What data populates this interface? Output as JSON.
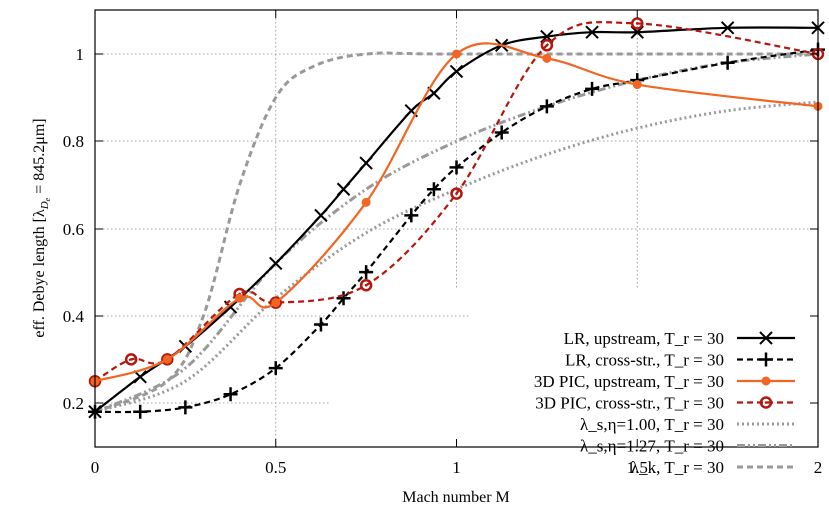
{
  "chart_data": {
    "type": "line",
    "title": "",
    "xlabel": "Mach number M",
    "ylabel": "eff. Debye length  [λ_De = 845.2μm]",
    "xlim": [
      0,
      2
    ],
    "ylim": [
      0.1,
      1.1
    ],
    "xticks": [
      "0",
      "0.5",
      "1",
      "1.5",
      "2"
    ],
    "yticks": [
      "0.2",
      "0.4",
      "0.6",
      "0.8",
      "1"
    ],
    "grid": true,
    "legend_position": "lower right",
    "series": [
      {
        "name": "LR, upstream, T_r = 30",
        "color": "#000000",
        "style": "solid",
        "marker": "x",
        "x": [
          0,
          0.125,
          0.25,
          0.375,
          0.5,
          0.625,
          0.6875,
          0.75,
          0.875,
          0.9375,
          1.0,
          1.125,
          1.25,
          1.375,
          1.5,
          1.75,
          2.0
        ],
        "y": [
          0.18,
          0.26,
          0.33,
          0.42,
          0.52,
          0.63,
          0.69,
          0.75,
          0.87,
          0.91,
          0.96,
          1.02,
          1.04,
          1.05,
          1.05,
          1.06,
          1.06
        ]
      },
      {
        "name": "LR, cross-str., T_r = 30",
        "color": "#000000",
        "style": "dashed",
        "marker": "+",
        "x": [
          0,
          0.125,
          0.25,
          0.375,
          0.5,
          0.625,
          0.6875,
          0.75,
          0.875,
          0.9375,
          1.0,
          1.125,
          1.25,
          1.375,
          1.5,
          1.75,
          2.0
        ],
        "y": [
          0.18,
          0.18,
          0.19,
          0.22,
          0.28,
          0.38,
          0.44,
          0.5,
          0.63,
          0.69,
          0.74,
          0.82,
          0.88,
          0.92,
          0.94,
          0.98,
          1.01
        ]
      },
      {
        "name": "3D PIC, upstream, T_r = 30",
        "color": "#f26522",
        "style": "solid",
        "marker": "dot",
        "x": [
          0,
          0.2,
          0.4,
          0.5,
          0.75,
          1.0,
          1.25,
          1.5,
          2.0
        ],
        "y": [
          0.25,
          0.3,
          0.44,
          0.43,
          0.66,
          1.0,
          0.99,
          0.93,
          0.88
        ]
      },
      {
        "name": "3D PIC, cross-str., T_r = 30",
        "color": "#b3170d",
        "style": "dashed",
        "marker": "circled-dot",
        "x": [
          0,
          0.1,
          0.2,
          0.4,
          0.5,
          0.75,
          1.0,
          1.25,
          1.5,
          2.0
        ],
        "y": [
          0.25,
          0.3,
          0.3,
          0.45,
          0.43,
          0.47,
          0.68,
          1.02,
          1.07,
          1.0
        ]
      },
      {
        "name": "λ_s,η=1.00, T_r = 30",
        "color": "#999999",
        "style": "dotted",
        "marker": "none",
        "x": [
          0,
          0.25,
          0.5,
          0.75,
          1.0,
          1.25,
          1.5,
          1.75,
          2.0
        ],
        "y": [
          0.18,
          0.25,
          0.44,
          0.59,
          0.69,
          0.77,
          0.83,
          0.87,
          0.89
        ]
      },
      {
        "name": "λ_s,η=1.27, T_r = 30",
        "color": "#999999",
        "style": "dash-dot-dot",
        "marker": "none",
        "x": [
          0,
          0.25,
          0.5,
          0.75,
          1.0,
          1.25,
          1.5,
          1.75,
          2.0
        ],
        "y": [
          0.18,
          0.28,
          0.52,
          0.69,
          0.8,
          0.88,
          0.94,
          0.98,
          1.0
        ]
      },
      {
        "name": "λ_k, T_r = 30",
        "color": "#999999",
        "style": "dashed",
        "marker": "none",
        "x": [
          0,
          0.2,
          0.3,
          0.4,
          0.5,
          0.6,
          0.75,
          1.0,
          2.0
        ],
        "y": [
          0.18,
          0.25,
          0.4,
          0.7,
          0.9,
          0.97,
          1.0,
          1.0,
          1.0
        ]
      }
    ]
  },
  "axes": {
    "xlabel": "Mach number M",
    "ylabel_main": "eff. Debye length  [λ",
    "ylabel_sub": "D",
    "ylabel_subsub": "e",
    "ylabel_tail": " = 845.2μm]",
    "xticks": [
      "0",
      "0.5",
      "1",
      "1.5",
      "2"
    ],
    "yticks": [
      "0.2",
      "0.4",
      "0.6",
      "0.8",
      "1"
    ]
  },
  "legend": [
    {
      "label": "LR, upstream, T_r = 30"
    },
    {
      "label": "LR, cross-str., T_r = 30"
    },
    {
      "label": "3D PIC, upstream, T_r = 30"
    },
    {
      "label": "3D PIC, cross-str., T_r = 30"
    },
    {
      "label": "λ_s,η=1.00, T_r = 30"
    },
    {
      "label": "λ_s,η=1.27, T_r = 30"
    },
    {
      "label": "λ_k, T_r = 30"
    }
  ]
}
